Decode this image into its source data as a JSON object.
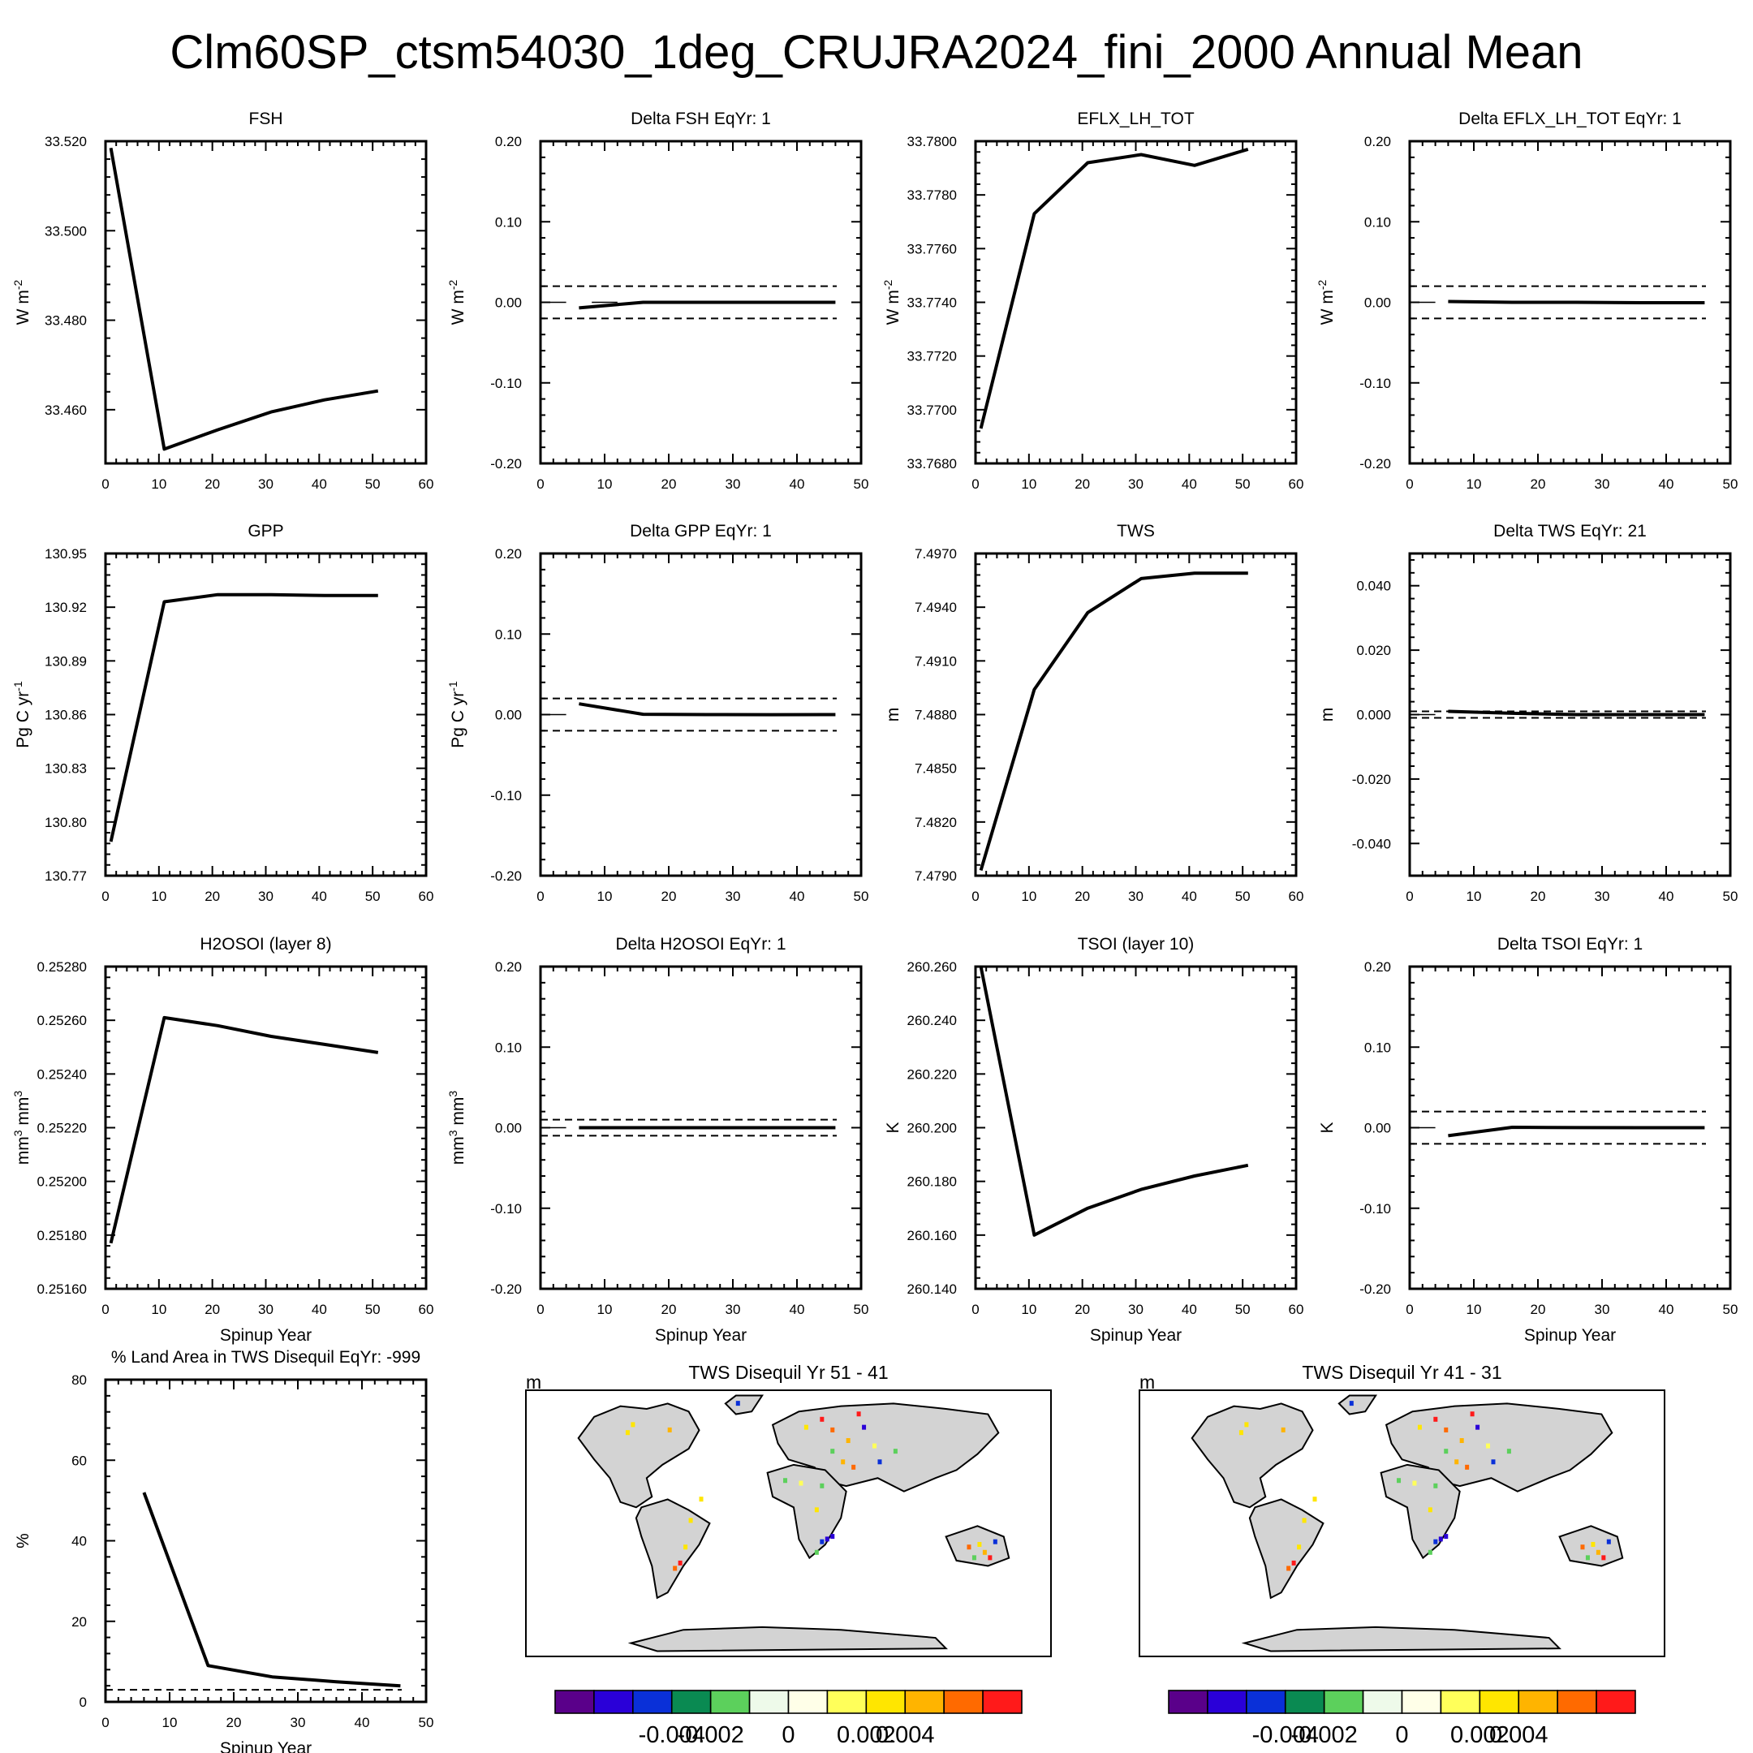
{
  "figure": {
    "title": "Clm60SP_ctsm54030_1deg_CRUJRA2024_fini_2000 Annual Mean",
    "spinup_label": "Spinup Year"
  },
  "chart_data": [
    {
      "type": "line",
      "title": "FSH",
      "xlabel": "",
      "ylabel": "W m",
      "ylabel_sup": "-2",
      "xlim": [
        0,
        60
      ],
      "xticks": [
        0,
        10,
        20,
        30,
        40,
        50,
        60
      ],
      "ylim": [
        33.448,
        33.52
      ],
      "yticks": [
        "33.460",
        "33.480",
        "33.500",
        "33.520"
      ],
      "ytick_values": [
        33.46,
        33.48,
        33.5,
        33.52
      ],
      "series": [
        {
          "x": [
            1,
            11,
            21,
            31,
            41,
            51
          ],
          "y": [
            33.5185,
            33.4512,
            33.4555,
            33.4595,
            33.4622,
            33.4642
          ]
        }
      ]
    },
    {
      "type": "line",
      "title": "Delta FSH EqYr: 1",
      "xlabel": "",
      "ylabel": "W m",
      "ylabel_sup": "-2",
      "xlim": [
        0,
        50
      ],
      "xticks": [
        0,
        10,
        20,
        30,
        40,
        50
      ],
      "ylim": [
        -0.2,
        0.2
      ],
      "yticks": [
        "-0.20",
        "-0.10",
        "0.00",
        "0.10",
        "0.20"
      ],
      "ytick_values": [
        -0.2,
        -0.1,
        0,
        0.1,
        0.2
      ],
      "thresholds": [
        0.02,
        -0.02
      ],
      "zero_marks": [
        [
          0,
          4
        ],
        [
          8,
          12
        ]
      ],
      "series": [
        {
          "x": [
            6,
            16,
            26,
            36,
            46
          ],
          "y": [
            -0.007,
            0.0,
            0.0,
            0.0,
            0.0
          ]
        }
      ]
    },
    {
      "type": "line",
      "title": "EFLX_LH_TOT",
      "xlabel": "",
      "ylabel": "W m",
      "ylabel_sup": "-2",
      "xlim": [
        0,
        60
      ],
      "xticks": [
        0,
        10,
        20,
        30,
        40,
        50,
        60
      ],
      "ylim": [
        33.768,
        33.78
      ],
      "yticks": [
        "33.7680",
        "33.7700",
        "33.7720",
        "33.7740",
        "33.7760",
        "33.7780",
        "33.7800"
      ],
      "ytick_values": [
        33.768,
        33.77,
        33.772,
        33.774,
        33.776,
        33.778,
        33.78
      ],
      "series": [
        {
          "x": [
            1,
            11,
            21,
            31,
            41,
            51
          ],
          "y": [
            33.7693,
            33.7773,
            33.7792,
            33.7795,
            33.7791,
            33.7797
          ]
        }
      ]
    },
    {
      "type": "line",
      "title": "Delta EFLX_LH_TOT EqYr: 1",
      "xlabel": "",
      "ylabel": "W m",
      "ylabel_sup": "-2",
      "xlim": [
        0,
        50
      ],
      "xticks": [
        0,
        10,
        20,
        30,
        40,
        50
      ],
      "ylim": [
        -0.2,
        0.2
      ],
      "yticks": [
        "-0.20",
        "-0.10",
        "0.00",
        "0.10",
        "0.20"
      ],
      "ytick_values": [
        -0.2,
        -0.1,
        0,
        0.1,
        0.2
      ],
      "thresholds": [
        0.02,
        -0.02
      ],
      "zero_marks": [
        [
          0,
          4
        ]
      ],
      "series": [
        {
          "x": [
            6,
            16,
            26,
            36,
            46
          ],
          "y": [
            0.001,
            0.0,
            0.0,
            -0.0005,
            -0.0005
          ]
        }
      ]
    },
    {
      "type": "line",
      "title": "GPP",
      "xlabel": "",
      "ylabel": "Pg C yr",
      "ylabel_sup": "-1",
      "xlim": [
        0,
        60
      ],
      "xticks": [
        0,
        10,
        20,
        30,
        40,
        50,
        60
      ],
      "ylim": [
        130.77,
        130.95
      ],
      "yticks": [
        "130.77",
        "130.80",
        "130.83",
        "130.86",
        "130.89",
        "130.92",
        "130.95"
      ],
      "ytick_values": [
        130.77,
        130.8,
        130.83,
        130.86,
        130.89,
        130.92,
        130.95
      ],
      "series": [
        {
          "x": [
            1,
            11,
            21,
            31,
            41,
            51
          ],
          "y": [
            130.789,
            130.923,
            130.927,
            130.927,
            130.9265,
            130.9265
          ]
        }
      ]
    },
    {
      "type": "line",
      "title": "Delta GPP EqYr: 1",
      "xlabel": "",
      "ylabel": "Pg C yr",
      "ylabel_sup": "-1",
      "xlim": [
        0,
        50
      ],
      "xticks": [
        0,
        10,
        20,
        30,
        40,
        50
      ],
      "ylim": [
        -0.2,
        0.2
      ],
      "yticks": [
        "-0.20",
        "-0.10",
        "0.00",
        "0.10",
        "0.20"
      ],
      "ytick_values": [
        -0.2,
        -0.1,
        0,
        0.1,
        0.2
      ],
      "thresholds": [
        0.02,
        -0.02
      ],
      "zero_marks": [
        [
          0,
          4
        ]
      ],
      "series": [
        {
          "x": [
            6,
            16,
            26,
            36,
            46
          ],
          "y": [
            0.0134,
            0.0004,
            0.0,
            -0.0001,
            0.0
          ]
        }
      ]
    },
    {
      "type": "line",
      "title": "TWS",
      "xlabel": "",
      "ylabel": "m",
      "ylabel_sup": "",
      "xlim": [
        0,
        60
      ],
      "xticks": [
        0,
        10,
        20,
        30,
        40,
        50,
        60
      ],
      "ylim": [
        7.479,
        7.497
      ],
      "yticks": [
        "7.4790",
        "7.4820",
        "7.4850",
        "7.4880",
        "7.4910",
        "7.4940",
        "7.4970"
      ],
      "ytick_values": [
        7.479,
        7.482,
        7.485,
        7.488,
        7.491,
        7.494,
        7.497
      ],
      "series": [
        {
          "x": [
            1,
            11,
            21,
            31,
            41,
            51
          ],
          "y": [
            7.4793,
            7.4894,
            7.4937,
            7.4956,
            7.4959,
            7.4959
          ]
        }
      ]
    },
    {
      "type": "line",
      "title": "Delta TWS EqYr: 21",
      "xlabel": "",
      "ylabel": "m",
      "ylabel_sup": "",
      "xlim": [
        0,
        50
      ],
      "xticks": [
        0,
        10,
        20,
        30,
        40,
        50
      ],
      "ylim": [
        -0.05,
        0.05
      ],
      "yticks": [
        "-0.040",
        "-0.020",
        "0.000",
        "0.020",
        "0.040"
      ],
      "ytick_values": [
        -0.04,
        -0.02,
        0,
        0.02,
        0.04
      ],
      "thresholds": [
        0.001,
        -0.001
      ],
      "zero_marks": [
        [
          0,
          4
        ]
      ],
      "series": [
        {
          "x": [
            6,
            16,
            26,
            36,
            46
          ],
          "y": [
            0.001,
            0.0004,
            0.0,
            0.0,
            0.0
          ]
        }
      ]
    },
    {
      "type": "line",
      "title": "H2OSOI (layer 8)",
      "xlabel": "Spinup Year",
      "ylabel": "mm",
      "ylabel_sup": "3",
      "ylabel_parts": [
        "mm",
        "3",
        " mm",
        "3"
      ],
      "xlim": [
        0,
        60
      ],
      "xticks": [
        0,
        10,
        20,
        30,
        40,
        50,
        60
      ],
      "ylim": [
        0.2516,
        0.2528
      ],
      "yticks": [
        "0.25160",
        "0.25180",
        "0.25200",
        "0.25220",
        "0.25240",
        "0.25260",
        "0.25280"
      ],
      "ytick_values": [
        0.2516,
        0.2518,
        0.252,
        0.2522,
        0.2524,
        0.2526,
        0.2528
      ],
      "series": [
        {
          "x": [
            1,
            11,
            21,
            31,
            41,
            51
          ],
          "y": [
            0.25177,
            0.25261,
            0.25258,
            0.25254,
            0.25251,
            0.25248
          ]
        }
      ]
    },
    {
      "type": "line",
      "title": "Delta H2OSOI EqYr: 1",
      "xlabel": "Spinup Year",
      "ylabel": "mm",
      "ylabel_sup": "3",
      "ylabel_parts": [
        "mm",
        "3",
        " mm",
        "3"
      ],
      "xlim": [
        0,
        50
      ],
      "xticks": [
        0,
        10,
        20,
        30,
        40,
        50
      ],
      "ylim": [
        -0.2,
        0.2
      ],
      "yticks": [
        "-0.20",
        "-0.10",
        "0.00",
        "0.10",
        "0.20"
      ],
      "ytick_values": [
        -0.2,
        -0.1,
        0,
        0.1,
        0.2
      ],
      "thresholds": [
        0.01,
        -0.01
      ],
      "zero_marks": [
        [
          0,
          4
        ]
      ],
      "series": [
        {
          "x": [
            6,
            16,
            26,
            36,
            46
          ],
          "y": [
            0.0,
            0.0,
            0.0,
            0.0,
            0.0
          ]
        }
      ]
    },
    {
      "type": "line",
      "title": "TSOI (layer 10)",
      "xlabel": "Spinup Year",
      "ylabel": "K",
      "ylabel_sup": "",
      "xlim": [
        0,
        60
      ],
      "xticks": [
        0,
        10,
        20,
        30,
        40,
        50,
        60
      ],
      "ylim": [
        260.14,
        260.26
      ],
      "yticks": [
        "260.140",
        "260.160",
        "260.180",
        "260.200",
        "260.220",
        "260.240",
        "260.260"
      ],
      "ytick_values": [
        260.14,
        260.16,
        260.18,
        260.2,
        260.22,
        260.24,
        260.26
      ],
      "series": [
        {
          "x": [
            1,
            11,
            21,
            31,
            41,
            51
          ],
          "y": [
            260.26,
            260.16,
            260.17,
            260.177,
            260.182,
            260.186
          ]
        }
      ]
    },
    {
      "type": "line",
      "title": "Delta TSOI EqYr: 1",
      "xlabel": "Spinup Year",
      "ylabel": "K",
      "ylabel_sup": "",
      "xlim": [
        0,
        50
      ],
      "xticks": [
        0,
        10,
        20,
        30,
        40,
        50
      ],
      "ylim": [
        -0.2,
        0.2
      ],
      "yticks": [
        "-0.20",
        "-0.10",
        "0.00",
        "0.10",
        "0.20"
      ],
      "ytick_values": [
        -0.2,
        -0.1,
        0,
        0.1,
        0.2
      ],
      "thresholds": [
        0.02,
        -0.02
      ],
      "zero_marks": [
        [
          0,
          4
        ]
      ],
      "series": [
        {
          "x": [
            6,
            16,
            26,
            36,
            46
          ],
          "y": [
            -0.01,
            0.0005,
            0.0001,
            0.0,
            0.0
          ]
        }
      ]
    },
    {
      "type": "line",
      "title": "% Land Area in TWS Disequil EqYr: -999",
      "xlabel": "Spinup Year",
      "ylabel": "%",
      "ylabel_sup": "",
      "xlim": [
        0,
        50
      ],
      "xticks": [
        0,
        10,
        20,
        30,
        40,
        50
      ],
      "ylim": [
        0,
        80
      ],
      "yticks": [
        "0",
        "20",
        "40",
        "60",
        "80"
      ],
      "ytick_values": [
        0,
        20,
        40,
        60,
        80
      ],
      "thresholds": [
        3
      ],
      "series": [
        {
          "x": [
            6,
            16,
            26,
            36,
            46
          ],
          "y": [
            52,
            9,
            6.2,
            5,
            4
          ]
        }
      ]
    }
  ],
  "maps": [
    {
      "title": "TWS Disequil Yr 51 - 41",
      "unit": "m"
    },
    {
      "title": "TWS Disequil Yr 41 - 31",
      "unit": "m"
    }
  ],
  "colorbar": {
    "colors": [
      "#5a008a",
      "#2a00d8",
      "#0a30d8",
      "#0a8a52",
      "#5cd05c",
      "#eefaea",
      "#ffffe8",
      "#ffff5a",
      "#ffe600",
      "#ffb400",
      "#ff6a00",
      "#ff1a1a"
    ],
    "labels": [
      "-0.004",
      "-0.002",
      "0",
      "0.002",
      "0.004"
    ]
  }
}
